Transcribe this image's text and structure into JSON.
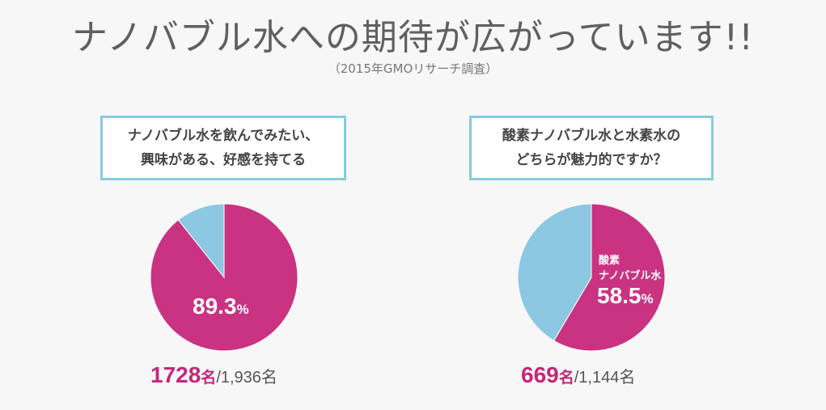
{
  "header": {
    "title": "ナノバブル水への期待が広がっています!!",
    "subtitle": "（2015年GMOリサーチ調査）"
  },
  "colors": {
    "magenta": "#c93382",
    "light_blue": "#8cc8e2",
    "box_border": "#86cbe0"
  },
  "charts": [
    {
      "question_line1": "ナノバブル水を飲んでみたい、",
      "question_line2": "興味がある、好感を持てる",
      "percent_value": "89.3",
      "percent_unit": "%",
      "count_value": "1728",
      "count_unit": "名",
      "count_total": "/1,936名"
    },
    {
      "question_line1": "酸素ナノバブル水と水素水の",
      "question_line2": "どちらが魅力的ですか？",
      "slice_label_line1": "酸素",
      "slice_label_line2": "ナノバブル水",
      "percent_value": "58.5",
      "percent_unit": "%",
      "count_value": "669",
      "count_unit": "名",
      "count_total": "/1,144名"
    }
  ],
  "chart_data": [
    {
      "type": "pie",
      "title": "",
      "slices": [
        {
          "value": 89.3,
          "label": "89.3%",
          "color": "#c93382"
        },
        {
          "value": 10.7,
          "label": "",
          "color": "#8cc8e2"
        }
      ],
      "start": "12 o'clock, clockwise"
    },
    {
      "type": "pie",
      "title": "",
      "slices": [
        {
          "value": 58.5,
          "label": "酸素ナノバブル水 58.5%",
          "color": "#c93382"
        },
        {
          "value": 41.5,
          "label": "",
          "color": "#8cc8e2"
        }
      ],
      "start": "12 o'clock, clockwise"
    }
  ]
}
